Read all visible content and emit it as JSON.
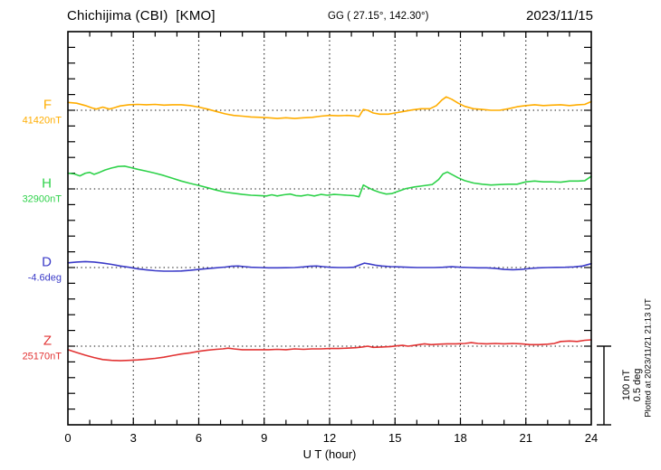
{
  "header": {
    "station": "Chichijima (CBI)  [KMO]",
    "coordinates": "GG ( 27.15°, 142.30°)",
    "date": "2023/11/15"
  },
  "x_axis": {
    "label": "U T (hour)",
    "tick_labels": [
      "0",
      "3",
      "6",
      "9",
      "12",
      "15",
      "18",
      "21",
      "24"
    ],
    "range_hours": [
      0,
      24
    ]
  },
  "scale_bar": {
    "nt": "100 nT",
    "deg": "0.5 deg"
  },
  "footer_note": "Plotted at 2023/11/21 21:13 UT",
  "chart_data": {
    "type": "line",
    "title": "Chichijima (CBI) [KMO] magnetogram, 2023/11/15",
    "xlabel": "U T (hour)",
    "x_range": [
      0,
      24
    ],
    "x_grid_hours": [
      3,
      6,
      9,
      12,
      15,
      18,
      21
    ],
    "grid": "dotted vertical lines every 3 h; dotted horizontal baseline for each trace; minor ticks every 1 h (x) and 20 nT / 0.1 deg (y)",
    "scale": {
      "nT_per_division": 100,
      "deg_per_division": 0.5
    },
    "series": [
      {
        "name": "F",
        "unit": "nT",
        "baseline_label": "41420nT",
        "baseline_value": 41420,
        "color": "#FFAD00",
        "points": [
          [
            0,
            41430
          ],
          [
            0.4,
            41429
          ],
          [
            0.8,
            41426
          ],
          [
            1.1,
            41423
          ],
          [
            1.3,
            41421.5
          ],
          [
            1.6,
            41424
          ],
          [
            1.9,
            41421.5
          ],
          [
            2.1,
            41423
          ],
          [
            2.4,
            41425.5
          ],
          [
            2.8,
            41427
          ],
          [
            3.2,
            41427.5
          ],
          [
            3.6,
            41427
          ],
          [
            4,
            41427.5
          ],
          [
            4.4,
            41426.5
          ],
          [
            4.8,
            41427
          ],
          [
            5.2,
            41427
          ],
          [
            5.6,
            41426
          ],
          [
            6,
            41424
          ],
          [
            6.4,
            41421.5
          ],
          [
            6.8,
            41418.5
          ],
          [
            7.2,
            41415.5
          ],
          [
            7.6,
            41413.5
          ],
          [
            8,
            41412.5
          ],
          [
            8.4,
            41411.5
          ],
          [
            8.8,
            41411
          ],
          [
            9.2,
            41410.5
          ],
          [
            9.6,
            41409.5
          ],
          [
            10,
            41410.5
          ],
          [
            10.4,
            41409.5
          ],
          [
            10.8,
            41410.5
          ],
          [
            11.2,
            41411
          ],
          [
            11.6,
            41412.5
          ],
          [
            12,
            41413.5
          ],
          [
            12.4,
            41413
          ],
          [
            12.8,
            41413.5
          ],
          [
            13.1,
            41413
          ],
          [
            13.35,
            41412
          ],
          [
            13.55,
            41421
          ],
          [
            13.75,
            41420
          ],
          [
            14,
            41416.5
          ],
          [
            14.3,
            41415
          ],
          [
            14.7,
            41415
          ],
          [
            15,
            41416.5
          ],
          [
            15.4,
            41418.5
          ],
          [
            15.8,
            41420.5
          ],
          [
            16.2,
            41422
          ],
          [
            16.6,
            41422
          ],
          [
            16.9,
            41426
          ],
          [
            17.15,
            41433
          ],
          [
            17.35,
            41437
          ],
          [
            17.6,
            41434
          ],
          [
            17.9,
            41429
          ],
          [
            18.2,
            41425
          ],
          [
            18.6,
            41422
          ],
          [
            19,
            41421
          ],
          [
            19.4,
            41420
          ],
          [
            19.8,
            41420
          ],
          [
            20.2,
            41422
          ],
          [
            20.6,
            41424.5
          ],
          [
            21,
            41426
          ],
          [
            21.4,
            41427
          ],
          [
            21.8,
            41426
          ],
          [
            22.2,
            41426.5
          ],
          [
            22.6,
            41427
          ],
          [
            23,
            41426
          ],
          [
            23.4,
            41427
          ],
          [
            23.7,
            41427.5
          ],
          [
            24,
            41431
          ]
        ]
      },
      {
        "name": "H",
        "unit": "nT",
        "baseline_label": "32900nT",
        "baseline_value": 32900,
        "color": "#2ED24A",
        "points": [
          [
            0,
            32920
          ],
          [
            0.3,
            32919
          ],
          [
            0.55,
            32916.5
          ],
          [
            0.8,
            32920
          ],
          [
            1,
            32921
          ],
          [
            1.2,
            32918.5
          ],
          [
            1.45,
            32921
          ],
          [
            1.7,
            32924
          ],
          [
            2,
            32926.5
          ],
          [
            2.3,
            32928.5
          ],
          [
            2.6,
            32929
          ],
          [
            2.9,
            32927
          ],
          [
            3.2,
            32925
          ],
          [
            3.6,
            32922.5
          ],
          [
            4,
            32920
          ],
          [
            4.4,
            32917
          ],
          [
            4.8,
            32913.5
          ],
          [
            5.2,
            32910
          ],
          [
            5.6,
            32907
          ],
          [
            6,
            32904.5
          ],
          [
            6.4,
            32901.5
          ],
          [
            6.8,
            32898.5
          ],
          [
            7.2,
            32896
          ],
          [
            7.6,
            32894.5
          ],
          [
            8,
            32893
          ],
          [
            8.4,
            32892
          ],
          [
            8.8,
            32891.5
          ],
          [
            9.1,
            32891
          ],
          [
            9.35,
            32892.5
          ],
          [
            9.6,
            32891
          ],
          [
            9.9,
            32892.5
          ],
          [
            10.2,
            32893.5
          ],
          [
            10.45,
            32891.5
          ],
          [
            10.7,
            32891
          ],
          [
            11,
            32892.5
          ],
          [
            11.3,
            32891
          ],
          [
            11.6,
            32893
          ],
          [
            11.9,
            32892
          ],
          [
            12.2,
            32893
          ],
          [
            12.5,
            32892.5
          ],
          [
            12.8,
            32892
          ],
          [
            13.1,
            32891.5
          ],
          [
            13.35,
            32890
          ],
          [
            13.55,
            32905
          ],
          [
            13.75,
            32902
          ],
          [
            14,
            32898.5
          ],
          [
            14.3,
            32895.5
          ],
          [
            14.6,
            32893.5
          ],
          [
            14.85,
            32894
          ],
          [
            15.1,
            32896.5
          ],
          [
            15.5,
            32900.5
          ],
          [
            15.9,
            32902.5
          ],
          [
            16.3,
            32904
          ],
          [
            16.7,
            32905.5
          ],
          [
            17,
            32912
          ],
          [
            17.2,
            32919
          ],
          [
            17.4,
            32921.5
          ],
          [
            17.6,
            32918.5
          ],
          [
            17.9,
            32914
          ],
          [
            18.2,
            32910.5
          ],
          [
            18.6,
            32907.5
          ],
          [
            19,
            32906
          ],
          [
            19.4,
            32905
          ],
          [
            19.8,
            32905.5
          ],
          [
            20.2,
            32906
          ],
          [
            20.6,
            32906
          ],
          [
            21,
            32909
          ],
          [
            21.4,
            32910
          ],
          [
            21.8,
            32909
          ],
          [
            22.2,
            32909
          ],
          [
            22.6,
            32908.5
          ],
          [
            23,
            32910
          ],
          [
            23.4,
            32910
          ],
          [
            23.7,
            32910.5
          ],
          [
            24,
            32916
          ]
        ]
      },
      {
        "name": "D",
        "unit": "deg",
        "baseline_label": "-4.6deg",
        "baseline_value": -4.6,
        "color": "#3B3BC8",
        "points": [
          [
            0,
            -4.57
          ],
          [
            0.4,
            -4.565
          ],
          [
            0.8,
            -4.562
          ],
          [
            1.2,
            -4.565
          ],
          [
            1.6,
            -4.572
          ],
          [
            2,
            -4.58
          ],
          [
            2.4,
            -4.59
          ],
          [
            2.8,
            -4.598
          ],
          [
            3.2,
            -4.608
          ],
          [
            3.6,
            -4.615
          ],
          [
            4,
            -4.62
          ],
          [
            4.4,
            -4.623
          ],
          [
            4.8,
            -4.623
          ],
          [
            5.2,
            -4.622
          ],
          [
            5.6,
            -4.618
          ],
          [
            6,
            -4.612
          ],
          [
            6.4,
            -4.607
          ],
          [
            6.8,
            -4.602
          ],
          [
            7.2,
            -4.597
          ],
          [
            7.5,
            -4.592
          ],
          [
            7.8,
            -4.59
          ],
          [
            8.1,
            -4.594
          ],
          [
            8.4,
            -4.598
          ],
          [
            8.8,
            -4.6
          ],
          [
            9.2,
            -4.602
          ],
          [
            9.6,
            -4.602
          ],
          [
            10,
            -4.601
          ],
          [
            10.4,
            -4.6
          ],
          [
            10.8,
            -4.596
          ],
          [
            11.1,
            -4.592
          ],
          [
            11.4,
            -4.59
          ],
          [
            11.7,
            -4.594
          ],
          [
            12,
            -4.598
          ],
          [
            12.4,
            -4.6
          ],
          [
            12.8,
            -4.6
          ],
          [
            13.1,
            -4.598
          ],
          [
            13.35,
            -4.585
          ],
          [
            13.6,
            -4.572
          ],
          [
            13.85,
            -4.578
          ],
          [
            14.1,
            -4.585
          ],
          [
            14.4,
            -4.59
          ],
          [
            14.8,
            -4.594
          ],
          [
            15.2,
            -4.596
          ],
          [
            15.6,
            -4.598
          ],
          [
            16,
            -4.6
          ],
          [
            16.4,
            -4.6
          ],
          [
            16.8,
            -4.6
          ],
          [
            17.2,
            -4.598
          ],
          [
            17.6,
            -4.595
          ],
          [
            18,
            -4.598
          ],
          [
            18.4,
            -4.6
          ],
          [
            18.8,
            -4.602
          ],
          [
            19.2,
            -4.602
          ],
          [
            19.6,
            -4.605
          ],
          [
            20,
            -4.612
          ],
          [
            20.4,
            -4.614
          ],
          [
            20.8,
            -4.612
          ],
          [
            21.2,
            -4.606
          ],
          [
            21.6,
            -4.602
          ],
          [
            22,
            -4.6
          ],
          [
            22.4,
            -4.599
          ],
          [
            22.8,
            -4.598
          ],
          [
            23.2,
            -4.596
          ],
          [
            23.6,
            -4.59
          ],
          [
            24,
            -4.575
          ]
        ]
      },
      {
        "name": "Z",
        "unit": "nT",
        "baseline_label": "25170nT",
        "baseline_value": 25170,
        "color": "#E23333",
        "points": [
          [
            0,
            25165.5
          ],
          [
            0.4,
            25162
          ],
          [
            0.8,
            25158.5
          ],
          [
            1.2,
            25155.5
          ],
          [
            1.6,
            25153
          ],
          [
            2,
            25152
          ],
          [
            2.4,
            25151.5
          ],
          [
            2.8,
            25152
          ],
          [
            3.2,
            25152.5
          ],
          [
            3.6,
            25153.5
          ],
          [
            4,
            25154.5
          ],
          [
            4.4,
            25156
          ],
          [
            4.8,
            25158
          ],
          [
            5.2,
            25160
          ],
          [
            5.6,
            25161.5
          ],
          [
            6,
            25163.5
          ],
          [
            6.4,
            25165
          ],
          [
            6.8,
            25166
          ],
          [
            7.1,
            25166.5
          ],
          [
            7.35,
            25167.5
          ],
          [
            7.6,
            25166.5
          ],
          [
            8,
            25165.5
          ],
          [
            8.4,
            25165.5
          ],
          [
            8.8,
            25165.5
          ],
          [
            9.2,
            25165.5
          ],
          [
            9.6,
            25166
          ],
          [
            10,
            25165.5
          ],
          [
            10.4,
            25166.5
          ],
          [
            10.8,
            25166
          ],
          [
            11.2,
            25166.5
          ],
          [
            11.6,
            25166.5
          ],
          [
            12,
            25167
          ],
          [
            12.4,
            25167
          ],
          [
            12.8,
            25167.5
          ],
          [
            13.2,
            25168
          ],
          [
            13.5,
            25169
          ],
          [
            13.75,
            25170
          ],
          [
            14,
            25168.5
          ],
          [
            14.4,
            25169
          ],
          [
            14.8,
            25169.5
          ],
          [
            15.1,
            25170.5
          ],
          [
            15.35,
            25171
          ],
          [
            15.6,
            25170
          ],
          [
            16,
            25171.5
          ],
          [
            16.35,
            25173
          ],
          [
            16.65,
            25172
          ],
          [
            17,
            25172.5
          ],
          [
            17.4,
            25173
          ],
          [
            17.8,
            25173
          ],
          [
            18.2,
            25173.5
          ],
          [
            18.5,
            25174.5
          ],
          [
            18.8,
            25173.5
          ],
          [
            19.2,
            25173
          ],
          [
            19.6,
            25173.5
          ],
          [
            20,
            25173
          ],
          [
            20.4,
            25173.5
          ],
          [
            20.8,
            25173
          ],
          [
            21.2,
            25172
          ],
          [
            21.6,
            25172
          ],
          [
            22,
            25172.5
          ],
          [
            22.3,
            25173.5
          ],
          [
            22.6,
            25176
          ],
          [
            23,
            25176.5
          ],
          [
            23.35,
            25176
          ],
          [
            23.7,
            25177.5
          ],
          [
            24,
            25178
          ]
        ]
      }
    ]
  }
}
